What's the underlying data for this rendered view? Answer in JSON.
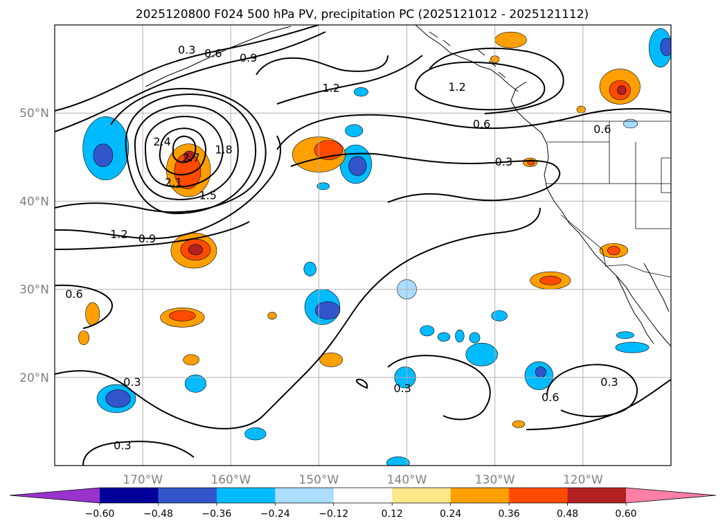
{
  "chart_data": {
    "type": "contour-map",
    "title": "2025120800 F024 500 hPa PV, precipitation PC (2025121012 - 2025121112)",
    "projection": "PlateCarree",
    "extent": {
      "lon": [
        -180,
        -110
      ],
      "lat": [
        10,
        60
      ]
    },
    "lon_ticks": [
      {
        "lon": -170,
        "label": "170°W"
      },
      {
        "lon": -160,
        "label": "160°W"
      },
      {
        "lon": -150,
        "label": "150°W"
      },
      {
        "lon": -140,
        "label": "140°W"
      },
      {
        "lon": -130,
        "label": "130°W"
      },
      {
        "lon": -120,
        "label": "120°W"
      }
    ],
    "lat_ticks": [
      {
        "lat": 20,
        "label": "20°N"
      },
      {
        "lat": 30,
        "label": "30°N"
      },
      {
        "lat": 40,
        "label": "40°N"
      },
      {
        "lat": 50,
        "label": "50°N"
      }
    ],
    "gridlines": true,
    "pv_contour_labels": [
      {
        "text": "0.3",
        "lon": -165.0,
        "lat": 57.2
      },
      {
        "text": "0.6",
        "lon": -162.0,
        "lat": 56.8
      },
      {
        "text": "0.9",
        "lon": -158.0,
        "lat": 56.3
      },
      {
        "text": "1.2",
        "lon": -148.6,
        "lat": 52.9
      },
      {
        "text": "1.2",
        "lon": -134.3,
        "lat": 53.0
      },
      {
        "text": "0.6",
        "lon": -131.5,
        "lat": 48.8
      },
      {
        "text": "0.6",
        "lon": -117.8,
        "lat": 48.2
      },
      {
        "text": "2.4",
        "lon": -167.8,
        "lat": 46.8
      },
      {
        "text": "2.7",
        "lon": -164.5,
        "lat": 45.0
      },
      {
        "text": "2.1",
        "lon": -166.5,
        "lat": 42.2
      },
      {
        "text": "1.8",
        "lon": -160.8,
        "lat": 45.9
      },
      {
        "text": "1.5",
        "lon": -162.6,
        "lat": 40.7
      },
      {
        "text": "0.3",
        "lon": -129.0,
        "lat": 44.5
      },
      {
        "text": "1.2",
        "lon": -172.7,
        "lat": 36.3
      },
      {
        "text": "0.9",
        "lon": -169.5,
        "lat": 35.8
      },
      {
        "text": "0.6",
        "lon": -177.8,
        "lat": 29.5
      },
      {
        "text": "0.3",
        "lon": -171.2,
        "lat": 19.5
      },
      {
        "text": "0.3",
        "lon": -140.5,
        "lat": 18.8
      },
      {
        "text": "0.6",
        "lon": -123.7,
        "lat": 17.8
      },
      {
        "text": "0.3",
        "lon": -117.0,
        "lat": 19.5
      },
      {
        "text": "0.3",
        "lon": -172.3,
        "lat": 12.3
      }
    ],
    "colorbar": {
      "levels": [
        -0.6,
        -0.48,
        -0.36,
        -0.24,
        -0.12,
        0.12,
        0.24,
        0.36,
        0.48,
        0.6
      ],
      "tick_labels": [
        "−0.60",
        "−0.48",
        "−0.36",
        "−0.24",
        "−0.12",
        "0.12",
        "0.24",
        "0.36",
        "0.48",
        "0.60"
      ],
      "colors": [
        "#9933cc",
        "#000099",
        "#3355cc",
        "#00bbff",
        "#aaddff",
        "#ffffff",
        "#ffe98a",
        "#ff9f00",
        "#ff4a00",
        "#b22222",
        "#ff80a6"
      ],
      "extend": "both"
    },
    "precip_blobs": [
      {
        "lon": -174.2,
        "lat": 46.0,
        "rx": 2.6,
        "ry": 3.6,
        "level": -0.36
      },
      {
        "lon": -174.5,
        "lat": 45.2,
        "rx": 1.1,
        "ry": 1.3,
        "level": -0.48
      },
      {
        "lon": -145.8,
        "lat": 44.2,
        "rx": 1.8,
        "ry": 2.2,
        "level": -0.36
      },
      {
        "lon": -145.6,
        "lat": 44.0,
        "rx": 1.0,
        "ry": 1.1,
        "level": -0.48
      },
      {
        "lon": -146.0,
        "lat": 48.0,
        "rx": 1.0,
        "ry": 0.7,
        "level": -0.36
      },
      {
        "lon": -149.5,
        "lat": 41.7,
        "rx": 0.7,
        "ry": 0.4,
        "level": -0.36
      },
      {
        "lon": -145.2,
        "lat": 52.4,
        "rx": 0.8,
        "ry": 0.5,
        "level": -0.36
      },
      {
        "lon": -149.6,
        "lat": 28.0,
        "rx": 2.0,
        "ry": 2.0,
        "level": -0.36
      },
      {
        "lon": -149.0,
        "lat": 27.6,
        "rx": 1.4,
        "ry": 1.0,
        "level": -0.48
      },
      {
        "lon": -151.0,
        "lat": 32.3,
        "rx": 0.7,
        "ry": 0.8,
        "level": -0.36
      },
      {
        "lon": -173.0,
        "lat": 17.6,
        "rx": 2.2,
        "ry": 1.6,
        "level": -0.36
      },
      {
        "lon": -172.8,
        "lat": 17.6,
        "rx": 1.4,
        "ry": 1.0,
        "level": -0.48
      },
      {
        "lon": -164.0,
        "lat": 19.3,
        "rx": 1.2,
        "ry": 1.0,
        "level": -0.36
      },
      {
        "lon": -157.2,
        "lat": 13.6,
        "rx": 1.2,
        "ry": 0.7,
        "level": -0.36
      },
      {
        "lon": -141.0,
        "lat": 10.3,
        "rx": 1.3,
        "ry": 0.7,
        "level": -0.36
      },
      {
        "lon": -140.2,
        "lat": 20.0,
        "rx": 1.2,
        "ry": 1.2,
        "level": -0.36
      },
      {
        "lon": -131.5,
        "lat": 22.6,
        "rx": 1.8,
        "ry": 1.3,
        "level": -0.36
      },
      {
        "lon": -125.0,
        "lat": 20.2,
        "rx": 1.6,
        "ry": 1.6,
        "level": -0.36
      },
      {
        "lon": -124.8,
        "lat": 20.6,
        "rx": 0.6,
        "ry": 0.6,
        "level": -0.48
      },
      {
        "lon": -132.3,
        "lat": 24.5,
        "rx": 0.6,
        "ry": 0.6,
        "level": -0.36
      },
      {
        "lon": -137.7,
        "lat": 25.3,
        "rx": 0.8,
        "ry": 0.6,
        "level": -0.36
      },
      {
        "lon": -135.8,
        "lat": 24.6,
        "rx": 0.7,
        "ry": 0.5,
        "level": -0.36
      },
      {
        "lon": -134.0,
        "lat": 24.7,
        "rx": 0.5,
        "ry": 0.7,
        "level": -0.36
      },
      {
        "lon": -129.5,
        "lat": 27.0,
        "rx": 0.9,
        "ry": 0.6,
        "level": -0.36
      },
      {
        "lon": -114.4,
        "lat": 23.4,
        "rx": 1.9,
        "ry": 0.6,
        "level": -0.36
      },
      {
        "lon": -115.2,
        "lat": 24.8,
        "rx": 1.0,
        "ry": 0.4,
        "level": -0.36
      },
      {
        "lon": -140.0,
        "lat": 30.0,
        "rx": 1.1,
        "ry": 1.1,
        "level": -0.24
      },
      {
        "lon": -114.6,
        "lat": 48.8,
        "rx": 0.8,
        "ry": 0.5,
        "level": -0.24
      },
      {
        "lon": -111.2,
        "lat": 57.4,
        "rx": 1.3,
        "ry": 2.2,
        "level": -0.36
      },
      {
        "lon": -110.5,
        "lat": 57.5,
        "rx": 0.7,
        "ry": 1.0,
        "level": -0.48
      },
      {
        "lon": -150.0,
        "lat": 45.3,
        "rx": 3.0,
        "ry": 2.0,
        "level": 0.24
      },
      {
        "lon": -148.9,
        "lat": 45.8,
        "rx": 1.6,
        "ry": 1.1,
        "level": 0.36
      },
      {
        "lon": -164.8,
        "lat": 43.5,
        "rx": 2.5,
        "ry": 3.0,
        "level": 0.24
      },
      {
        "lon": -164.9,
        "lat": 43.4,
        "rx": 1.5,
        "ry": 2.0,
        "level": 0.36
      },
      {
        "lon": -164.7,
        "lat": 45.2,
        "rx": 0.6,
        "ry": 0.5,
        "level": 0.48
      },
      {
        "lon": -164.2,
        "lat": 34.4,
        "rx": 2.6,
        "ry": 2.0,
        "level": 0.24
      },
      {
        "lon": -164.0,
        "lat": 34.5,
        "rx": 1.7,
        "ry": 1.2,
        "level": 0.36
      },
      {
        "lon": -164.0,
        "lat": 34.5,
        "rx": 0.8,
        "ry": 0.6,
        "level": 0.48
      },
      {
        "lon": -165.5,
        "lat": 26.8,
        "rx": 2.5,
        "ry": 1.1,
        "level": 0.24
      },
      {
        "lon": -165.5,
        "lat": 27.0,
        "rx": 1.5,
        "ry": 0.6,
        "level": 0.36
      },
      {
        "lon": -175.7,
        "lat": 27.2,
        "rx": 0.8,
        "ry": 1.3,
        "level": 0.24
      },
      {
        "lon": -176.7,
        "lat": 24.5,
        "rx": 0.6,
        "ry": 0.8,
        "level": 0.24
      },
      {
        "lon": -164.5,
        "lat": 22.0,
        "rx": 0.9,
        "ry": 0.6,
        "level": 0.24
      },
      {
        "lon": -148.6,
        "lat": 22.0,
        "rx": 1.3,
        "ry": 0.8,
        "level": 0.24
      },
      {
        "lon": -155.3,
        "lat": 27.0,
        "rx": 0.5,
        "ry": 0.4,
        "level": 0.24
      },
      {
        "lon": -128.2,
        "lat": 58.3,
        "rx": 1.8,
        "ry": 0.9,
        "level": 0.24
      },
      {
        "lon": -115.8,
        "lat": 53.0,
        "rx": 2.3,
        "ry": 2.0,
        "level": 0.24
      },
      {
        "lon": -115.8,
        "lat": 52.6,
        "rx": 1.2,
        "ry": 1.1,
        "level": 0.36
      },
      {
        "lon": -115.6,
        "lat": 52.6,
        "rx": 0.5,
        "ry": 0.5,
        "level": 0.48
      },
      {
        "lon": -126.0,
        "lat": 44.4,
        "rx": 0.8,
        "ry": 0.5,
        "level": 0.24
      },
      {
        "lon": -125.9,
        "lat": 44.4,
        "rx": 0.4,
        "ry": 0.3,
        "level": 0.36
      },
      {
        "lon": -120.2,
        "lat": 50.4,
        "rx": 0.5,
        "ry": 0.4,
        "level": 0.24
      },
      {
        "lon": -116.5,
        "lat": 34.4,
        "rx": 1.6,
        "ry": 0.8,
        "level": 0.24
      },
      {
        "lon": -116.5,
        "lat": 34.4,
        "rx": 0.7,
        "ry": 0.5,
        "level": 0.36
      },
      {
        "lon": -123.7,
        "lat": 31.0,
        "rx": 2.3,
        "ry": 1.0,
        "level": 0.24
      },
      {
        "lon": -123.7,
        "lat": 31.0,
        "rx": 1.2,
        "ry": 0.5,
        "level": 0.36
      },
      {
        "lon": -127.3,
        "lat": 14.7,
        "rx": 0.7,
        "ry": 0.4,
        "level": 0.24
      },
      {
        "lon": -130.0,
        "lat": 56.1,
        "rx": 0.5,
        "ry": 0.4,
        "level": 0.24
      }
    ]
  }
}
